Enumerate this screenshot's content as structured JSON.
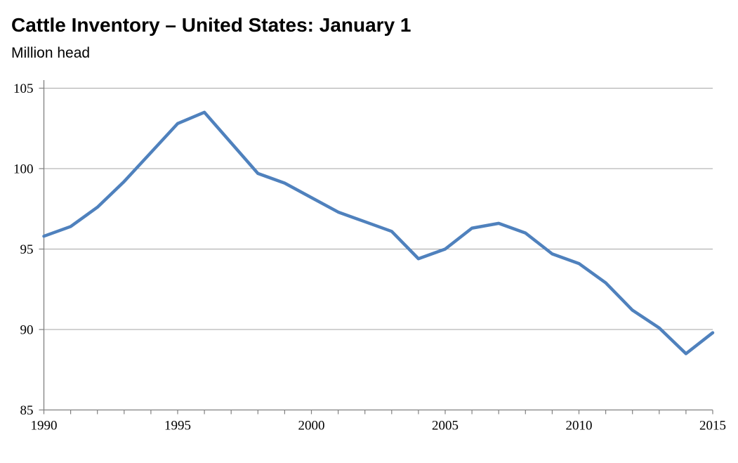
{
  "title": "Cattle Inventory – United States: January 1",
  "subtitle": "Million head",
  "colors": {
    "line": "#4F81BD",
    "gridline": "#A6A6A6",
    "axis": "#808080",
    "text": "#000000",
    "background": "#FFFFFF"
  },
  "chart_data": {
    "type": "line",
    "title": "Cattle Inventory – United States: January 1",
    "xlabel": "",
    "ylabel": "Million head",
    "x": [
      1990,
      1991,
      1992,
      1993,
      1994,
      1995,
      1996,
      1997,
      1998,
      1999,
      2000,
      2001,
      2002,
      2003,
      2004,
      2005,
      2006,
      2007,
      2008,
      2009,
      2010,
      2011,
      2012,
      2013,
      2014,
      2015
    ],
    "values": [
      95.8,
      96.4,
      97.6,
      99.2,
      101.0,
      102.8,
      103.5,
      101.6,
      99.7,
      99.1,
      98.2,
      97.3,
      96.7,
      96.1,
      94.4,
      95.0,
      96.3,
      96.6,
      96.0,
      94.7,
      94.1,
      92.9,
      91.2,
      90.1,
      88.5,
      89.8
    ],
    "ylim": [
      85,
      105
    ],
    "yticks": [
      85,
      90,
      95,
      100,
      105
    ],
    "xtick_minor_every_year": true,
    "xtick_labels": [
      1990,
      1995,
      2000,
      2005,
      2010,
      2015
    ],
    "grid": "horizontal",
    "legend": "none",
    "line_color": "#4F81BD"
  }
}
